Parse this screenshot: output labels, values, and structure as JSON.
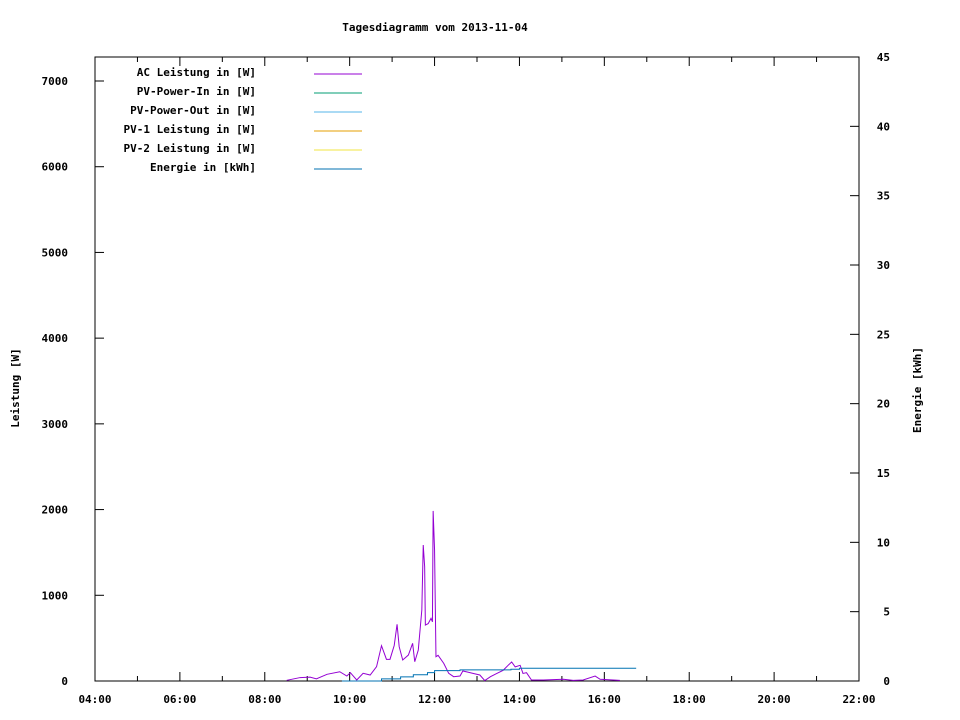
{
  "chart_data": {
    "type": "line",
    "title": "Tagesdiagramm vom 2013-11-04",
    "xlabel": "",
    "ylabel": "Leistung [W]",
    "y2label": "Energie [kWh]",
    "xlim": [
      "04:00",
      "22:00"
    ],
    "ylim": [
      0,
      7280
    ],
    "y2lim": [
      0,
      45
    ],
    "xticks": [
      "04:00",
      "06:00",
      "08:00",
      "10:00",
      "12:00",
      "14:00",
      "16:00",
      "18:00",
      "20:00",
      "22:00"
    ],
    "yticks": [
      0,
      1000,
      2000,
      3000,
      4000,
      5000,
      6000,
      7000
    ],
    "y2ticks": [
      0,
      5,
      10,
      15,
      20,
      25,
      30,
      35,
      40,
      45
    ],
    "grid": false,
    "legend_placement": "top-left",
    "series": [
      {
        "name": "AC Leistung in [W]",
        "axis": "y",
        "color": "#9400d3",
        "x": [
          "08:31",
          "08:50",
          "09:04",
          "09:13",
          "09:28",
          "09:46",
          "09:56",
          "10:01",
          "10:10",
          "10:19",
          "10:29",
          "10:38",
          "10:45",
          "10:52",
          "10:57",
          "11:03",
          "11:07",
          "11:10",
          "11:15",
          "11:23",
          "11:29",
          "11:32",
          "11:37",
          "11:42",
          "11:44",
          "11:46",
          "11:47",
          "11:51",
          "11:55",
          "11:57",
          "11:58",
          "12:00",
          "12:02",
          "12:05",
          "12:13",
          "12:20",
          "12:27",
          "12:36",
          "12:40",
          "12:47",
          "12:55",
          "13:04",
          "13:11",
          "13:19",
          "13:28",
          "13:37",
          "13:44",
          "13:49",
          "13:54",
          "14:01",
          "14:05",
          "14:10",
          "14:17",
          "14:34",
          "15:02",
          "15:16",
          "15:30",
          "15:47",
          "15:54",
          "16:22"
        ],
        "y": [
          8,
          40,
          45,
          25,
          78,
          108,
          58,
          97,
          12,
          90,
          70,
          167,
          412,
          253,
          253,
          416,
          661,
          400,
          245,
          303,
          440,
          225,
          362,
          828,
          1587,
          1334,
          653,
          670,
          731,
          690,
          1984,
          1529,
          284,
          300,
          206,
          90,
          50,
          58,
          117,
          103,
          88,
          70,
          5,
          50,
          88,
          125,
          183,
          222,
          165,
          183,
          88,
          97,
          12,
          12,
          20,
          8,
          12,
          58,
          20,
          8
        ]
      },
      {
        "name": "PV-Power-In in [W]",
        "axis": "y",
        "color": "#009e73",
        "x": [],
        "y": []
      },
      {
        "name": "PV-Power-Out in [W]",
        "axis": "y",
        "color": "#56b4e9",
        "x": [],
        "y": []
      },
      {
        "name": "PV-1 Leistung in [W]",
        "axis": "y",
        "color": "#e69f00",
        "x": [],
        "y": []
      },
      {
        "name": "PV-2 Leistung in [W]",
        "axis": "y",
        "color": "#f0e442",
        "x": [],
        "y": []
      },
      {
        "name": "Energie in [kWh]",
        "axis": "y2",
        "color": "#0072b2",
        "step": true,
        "x": [
          "09:49",
          "10:45",
          "11:12",
          "11:30",
          "11:50",
          "12:00",
          "12:36",
          "13:48",
          "14:00",
          "16:45"
        ],
        "y": [
          0,
          0.15,
          0.3,
          0.45,
          0.6,
          0.75,
          0.8,
          0.85,
          0.92,
          0.92
        ]
      }
    ]
  }
}
